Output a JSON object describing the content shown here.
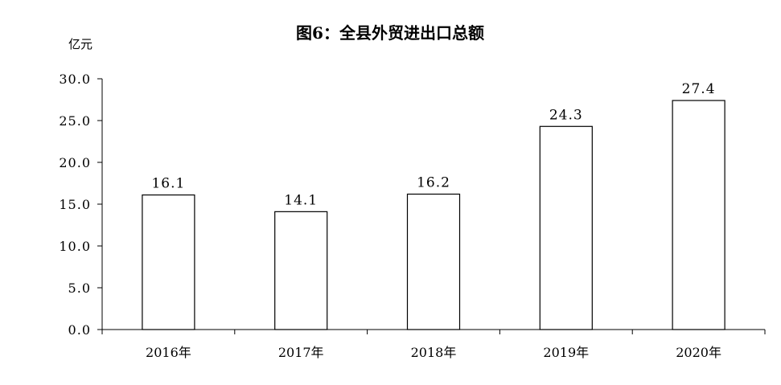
{
  "chart_data": {
    "type": "bar",
    "title": "图6：全县外贸进出口总额",
    "ylabel": "亿元",
    "xlabel": "",
    "categories": [
      "2016年",
      "2017年",
      "2018年",
      "2019年",
      "2020年"
    ],
    "values": [
      16.1,
      14.1,
      16.2,
      24.3,
      27.4
    ],
    "value_labels": [
      "16.1",
      "14.1",
      "16.2",
      "24.3",
      "27.4"
    ],
    "ylim": [
      0,
      30
    ],
    "yticks": [
      0,
      5,
      10,
      15,
      20,
      25,
      30
    ],
    "ytick_labels": [
      "0.0",
      "5.0",
      "10.0",
      "15.0",
      "20.0",
      "25.0",
      "30.0"
    ],
    "grid": false,
    "legend": "none",
    "bar_fill": "#ffffff",
    "bar_stroke": "#000000",
    "axis_color": "#000000"
  }
}
